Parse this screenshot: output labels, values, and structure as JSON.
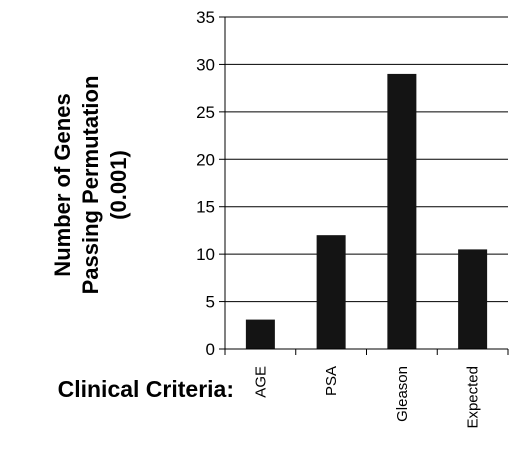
{
  "chart_data": {
    "type": "bar",
    "categories": [
      "AGE",
      "PSA",
      "Gleason",
      "Expected"
    ],
    "values": [
      3.1,
      12,
      29,
      10.5
    ],
    "ylabel_lines": [
      "Number of Genes",
      "Passing Permutation",
      "(0.001)"
    ],
    "xlabel": "Clinical Criteria:",
    "ylim": [
      0,
      35
    ],
    "yticks": [
      0,
      5,
      10,
      15,
      20,
      25,
      30,
      35
    ],
    "grid": true,
    "bar_color": "#141414"
  }
}
